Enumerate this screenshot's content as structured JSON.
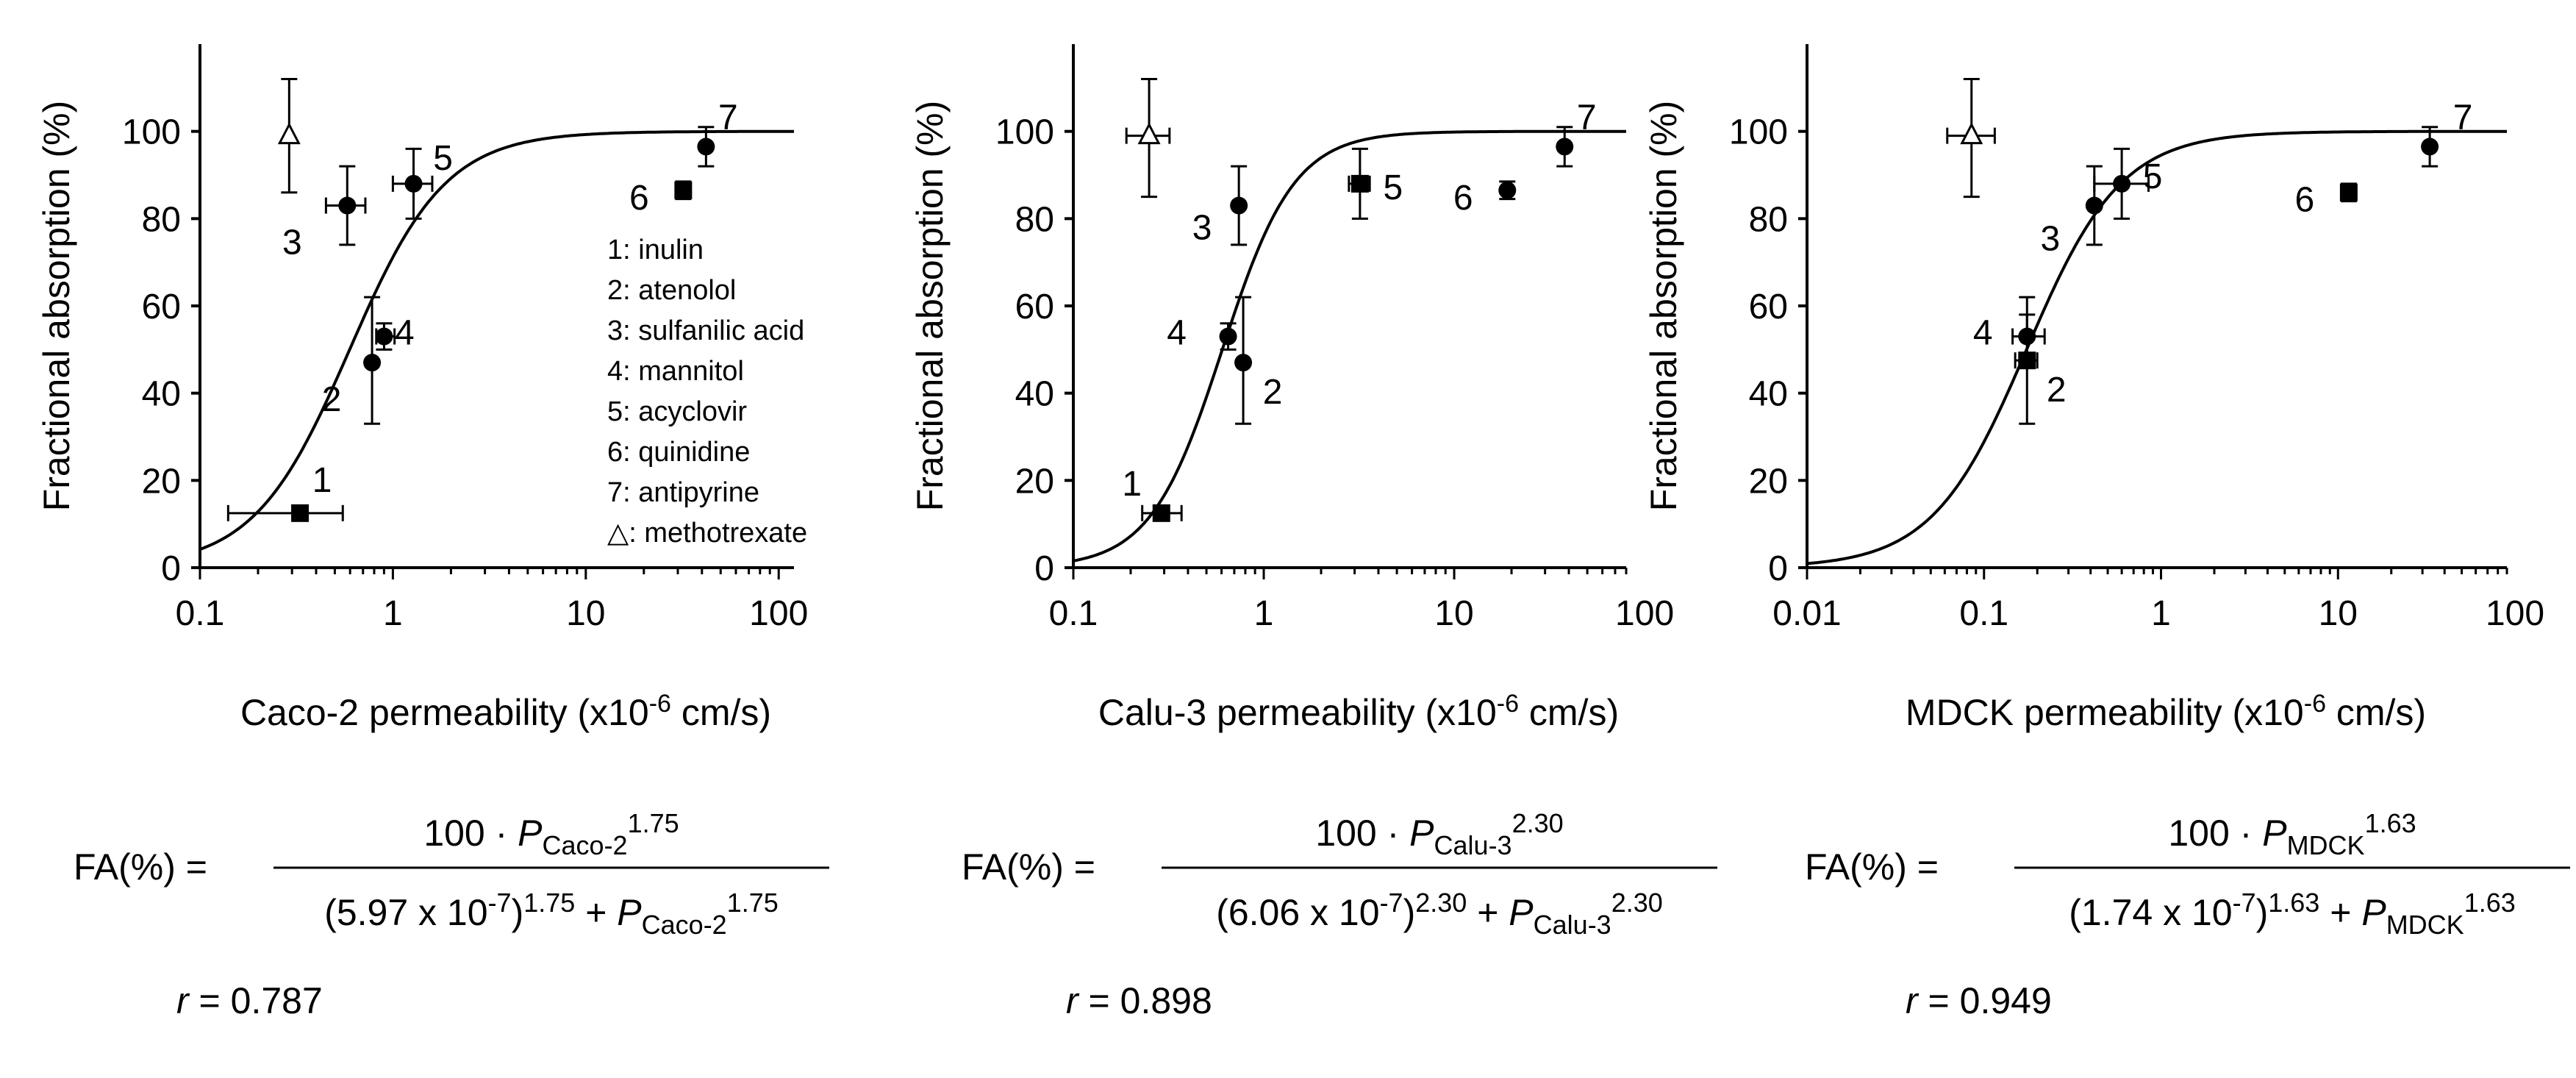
{
  "legend_items": [
    "1: inulin",
    "2: atenolol",
    "3: sulfanilic acid",
    "4: mannitol",
    "5: acyclovir",
    "6: quinidine",
    "7: antipyrine",
    "△: methotrexate"
  ],
  "chart_data": [
    {
      "type": "scatter",
      "ylabel": "Fractional absorption (%)",
      "xlabel": {
        "prefix": "Caco-2 permeability (x10",
        "exp": "-6",
        "suffix": " cm/s)"
      },
      "xscale": "log",
      "xlim": [
        0.1,
        120
      ],
      "ylim": [
        0,
        120
      ],
      "xticks": [
        {
          "v": 0.1,
          "label": "0.1"
        },
        {
          "v": 1,
          "label": "1"
        },
        {
          "v": 10,
          "label": "10"
        },
        {
          "v": 100,
          "label": "100"
        }
      ],
      "yticks": [
        {
          "v": 0,
          "label": "0"
        },
        {
          "v": 20,
          "label": "20"
        },
        {
          "v": 40,
          "label": "40"
        },
        {
          "v": 60,
          "label": "60"
        },
        {
          "v": 80,
          "label": "80"
        },
        {
          "v": 100,
          "label": "100"
        }
      ],
      "fit": {
        "p50": 0.597,
        "n": 1.75
      },
      "points": [
        {
          "id": "1",
          "label": "1",
          "x": 0.33,
          "y": 12.5,
          "xerr": [
            0.14,
            0.55
          ],
          "yerr": [
            11,
            14
          ],
          "marker": "square"
        },
        {
          "id": "2",
          "label": "2",
          "x": 0.78,
          "y": 47,
          "xerr": null,
          "yerr": [
            33,
            62
          ],
          "marker": "circle"
        },
        {
          "id": "3",
          "label": "3",
          "x": 0.58,
          "y": 83,
          "xerr": [
            0.45,
            0.72
          ],
          "yerr": [
            74,
            92
          ],
          "marker": "circle"
        },
        {
          "id": "4",
          "label": "4",
          "x": 0.9,
          "y": 53,
          "xerr": [
            0.82,
            1.02
          ],
          "yerr": [
            50,
            56
          ],
          "marker": "circle"
        },
        {
          "id": "5",
          "label": "5",
          "x": 1.28,
          "y": 88,
          "xerr": [
            1.0,
            1.6
          ],
          "yerr": [
            80,
            96
          ],
          "marker": "circle"
        },
        {
          "id": "6",
          "label": "6",
          "x": 32,
          "y": 86.5,
          "xerr": null,
          "yerr": [
            84.5,
            88.5
          ],
          "marker": "square"
        },
        {
          "id": "7",
          "label": "7",
          "x": 42,
          "y": 96.5,
          "xerr": null,
          "yerr": [
            92,
            101
          ],
          "marker": "circle"
        },
        {
          "id": "mtx",
          "label": "",
          "x": 0.29,
          "y": 99,
          "xerr": null,
          "yerr": [
            86,
            112
          ],
          "marker": "triangle"
        }
      ],
      "equation": {
        "lhs": "FA(%)",
        "num_pre": "100 · ",
        "sym": "P",
        "sub": "Caco-2",
        "pow": "1.75",
        "den_pre": "(5.97 x 10",
        "den_exp": "-7",
        "den_mid": ")",
        "den_plus": " + "
      },
      "r": {
        "sym": "r",
        "eq": "=",
        "value": "0.787"
      }
    },
    {
      "type": "scatter",
      "ylabel": "Fractional absorption (%)",
      "xlabel": {
        "prefix": "Calu-3 permeability (x10",
        "exp": "-6",
        "suffix": " cm/s)"
      },
      "xscale": "log",
      "xlim": [
        0.1,
        80
      ],
      "ylim": [
        0,
        120
      ],
      "xticks": [
        {
          "v": 0.1,
          "label": "0.1"
        },
        {
          "v": 1,
          "label": "1"
        },
        {
          "v": 10,
          "label": "10"
        },
        {
          "v": 100,
          "label": "100"
        }
      ],
      "yticks": [
        {
          "v": 0,
          "label": "0"
        },
        {
          "v": 20,
          "label": "20"
        },
        {
          "v": 40,
          "label": "40"
        },
        {
          "v": 60,
          "label": "60"
        },
        {
          "v": 80,
          "label": "80"
        },
        {
          "v": 100,
          "label": "100"
        }
      ],
      "fit": {
        "p50": 0.606,
        "n": 2.3
      },
      "points": [
        {
          "id": "1",
          "label": "1",
          "x": 0.29,
          "y": 12.5,
          "xerr": [
            0.23,
            0.37
          ],
          "yerr": [
            11,
            14
          ],
          "marker": "square"
        },
        {
          "id": "2",
          "label": "2",
          "x": 0.78,
          "y": 47,
          "xerr": null,
          "yerr": [
            33,
            62
          ],
          "marker": "circle"
        },
        {
          "id": "3",
          "label": "3",
          "x": 0.74,
          "y": 83,
          "xerr": null,
          "yerr": [
            74,
            92
          ],
          "marker": "circle"
        },
        {
          "id": "4",
          "label": "4",
          "x": 0.65,
          "y": 53,
          "xerr": null,
          "yerr": [
            50,
            56
          ],
          "marker": "circle"
        },
        {
          "id": "5",
          "label": "5",
          "x": 3.2,
          "y": 88,
          "xerr": [
            2.8,
            3.6
          ],
          "yerr": [
            80,
            96
          ],
          "marker": "square"
        },
        {
          "id": "6",
          "label": "6",
          "x": 19,
          "y": 86.5,
          "xerr": null,
          "yerr": [
            84.5,
            88.5
          ],
          "marker": "circle"
        },
        {
          "id": "7",
          "label": "7",
          "x": 38,
          "y": 96.5,
          "xerr": null,
          "yerr": [
            92,
            101
          ],
          "marker": "circle"
        },
        {
          "id": "mtx",
          "label": "",
          "x": 0.25,
          "y": 99,
          "xerr": [
            0.19,
            0.32
          ],
          "yerr": [
            85,
            112
          ],
          "marker": "triangle"
        }
      ],
      "equation": {
        "lhs": "FA(%)",
        "num_pre": "100 · ",
        "sym": "P",
        "sub": "Calu-3",
        "pow": "2.30",
        "den_pre": "(6.06 x 10",
        "den_exp": "-7",
        "den_mid": ")",
        "den_plus": " + "
      },
      "r": {
        "sym": "r",
        "eq": "=",
        "value": "0.898"
      }
    },
    {
      "type": "scatter",
      "ylabel": "Fractional absorption (%)",
      "xlabel": {
        "prefix": "MDCK permeability (x10",
        "exp": "-6",
        "suffix": " cm/s)"
      },
      "xscale": "log",
      "xlim": [
        0.01,
        90
      ],
      "ylim": [
        0,
        120
      ],
      "xticks": [
        {
          "v": 0.01,
          "label": "0.01"
        },
        {
          "v": 0.1,
          "label": "0.1"
        },
        {
          "v": 1,
          "label": "1"
        },
        {
          "v": 10,
          "label": "10"
        },
        {
          "v": 100,
          "label": "100"
        }
      ],
      "yticks": [
        {
          "v": 0,
          "label": "0"
        },
        {
          "v": 20,
          "label": "20"
        },
        {
          "v": 40,
          "label": "40"
        },
        {
          "v": 60,
          "label": "60"
        },
        {
          "v": 80,
          "label": "80"
        },
        {
          "v": 100,
          "label": "100"
        }
      ],
      "fit": {
        "p50": 0.174,
        "n": 1.63
      },
      "points": [
        {
          "id": "1",
          "label": "",
          "x": 0.175,
          "y": 47.5,
          "xerr": [
            0.15,
            0.2
          ],
          "yerr": [
            33,
            62
          ],
          "marker": "square"
        },
        {
          "id": "2",
          "label": "2",
          "x": 0.175,
          "y": 47.5,
          "xerr": null,
          "yerr": null,
          "marker": "circle"
        },
        {
          "id": "3",
          "label": "3",
          "x": 0.42,
          "y": 83,
          "xerr": null,
          "yerr": [
            74,
            92
          ],
          "marker": "circle"
        },
        {
          "id": "4",
          "label": "4",
          "x": 0.175,
          "y": 53,
          "xerr": [
            0.145,
            0.22
          ],
          "yerr": [
            48,
            58
          ],
          "marker": "circle"
        },
        {
          "id": "5",
          "label": "5",
          "x": 0.6,
          "y": 88,
          "xerr": [
            0.42,
            0.85
          ],
          "yerr": [
            80,
            96
          ],
          "marker": "circle"
        },
        {
          "id": "6",
          "label": "6",
          "x": 11.5,
          "y": 86,
          "xerr": null,
          "yerr": [
            84,
            88
          ],
          "marker": "square"
        },
        {
          "id": "7",
          "label": "7",
          "x": 33,
          "y": 96.5,
          "xerr": null,
          "yerr": [
            92,
            101
          ],
          "marker": "circle"
        },
        {
          "id": "mtx",
          "label": "",
          "x": 0.085,
          "y": 99,
          "xerr": [
            0.062,
            0.115
          ],
          "yerr": [
            85,
            112
          ],
          "marker": "triangle"
        }
      ],
      "equation": {
        "lhs": "FA(%)",
        "num_pre": "100 · ",
        "sym": "P",
        "sub": "MDCK",
        "pow": "1.63",
        "den_pre": "(1.74 x 10",
        "den_exp": "-7",
        "den_mid": ")",
        "den_plus": " + "
      },
      "r": {
        "sym": "r",
        "eq": "=",
        "value": "0.949"
      }
    }
  ]
}
